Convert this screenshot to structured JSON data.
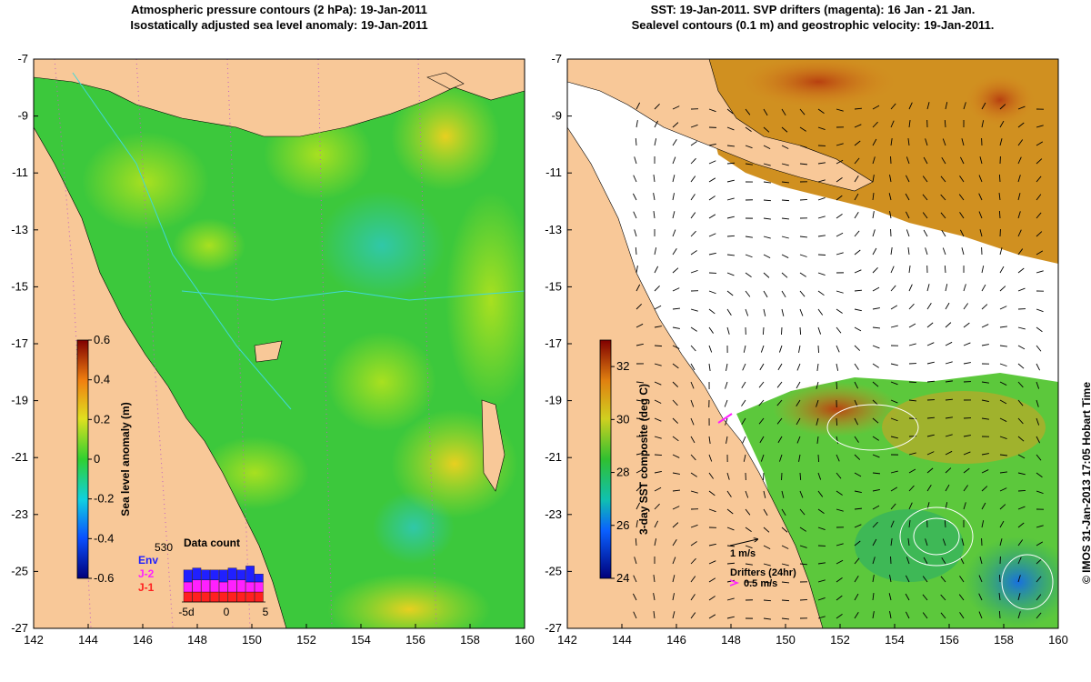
{
  "titles": {
    "left_line1": "Atmospheric pressure contours (2 hPa): 19-Jan-2011",
    "left_line2": "Isostatically adjusted sea level anomaly: 19-Jan-2011",
    "right_line1": "SST: 19-Jan-2011. SVP drifters (magenta): 16 Jan - 21 Jan.",
    "right_line2": "Sealevel contours (0.1 m) and geostrophic velocity: 19-Jan-2011."
  },
  "copyright": "© IMOS 31-Jan-2013 17:05 Hobart Time",
  "colors": {
    "land": "#f8c898",
    "ocean_mid": "#3cc83c",
    "warm": "#d8a020",
    "hot": "#b03010",
    "cold": "#1058c8"
  },
  "chart_data": [
    {
      "type": "heatmap",
      "title": "Atmospheric pressure contours (2 hPa): 19-Jan-2011 / Isostatically adjusted sea level anomaly: 19-Jan-2011",
      "x_ticks": [
        "142",
        "144",
        "146",
        "148",
        "150",
        "152",
        "154",
        "156",
        "158",
        "160"
      ],
      "y_ticks": [
        "-7",
        "-9",
        "-11",
        "-13",
        "-15",
        "-17",
        "-19",
        "-21",
        "-23",
        "-25",
        "-27"
      ],
      "xlim": [
        142,
        160
      ],
      "ylim": [
        -27,
        -7
      ],
      "colorbar": {
        "label": "Sea level anomaly (m)",
        "ticks": [
          "0.6",
          "0.4",
          "0.2",
          "0",
          "-0.2",
          "-0.4",
          "-0.6"
        ],
        "range": [
          -0.6,
          0.6
        ]
      },
      "inset": {
        "title": "Data count",
        "count": "530",
        "series": [
          {
            "name": "Env",
            "color": "#2020ff",
            "values": [
              6,
              6,
              5,
              5,
              6,
              6,
              5,
              8,
              4
            ]
          },
          {
            "name": "J-2",
            "color": "#ff20ff",
            "values": [
              5,
              6,
              6,
              6,
              5,
              6,
              6,
              5,
              5
            ]
          },
          {
            "name": "J-1",
            "color": "#ff2020",
            "values": [
              5,
              5,
              5,
              5,
              5,
              5,
              5,
              5,
              5
            ]
          }
        ],
        "x_ticks": [
          "-5d",
          "0",
          "5"
        ]
      },
      "anomaly_features": [
        {
          "lon": 155.5,
          "lat": -13.5,
          "value": -0.2
        },
        {
          "lon": 157,
          "lat": -10,
          "value": 0.15
        },
        {
          "lon": 157,
          "lat": -21,
          "value": 0.15
        },
        {
          "lon": 156,
          "lat": -26.5,
          "value": 0.2
        },
        {
          "lon": 155.5,
          "lat": -23.5,
          "value": -0.15
        }
      ]
    },
    {
      "type": "heatmap",
      "title": "SST: 19-Jan-2011. SVP drifters (magenta): 16 Jan - 21 Jan. / Sealevel contours (0.1 m) and geostrophic velocity: 19-Jan-2011.",
      "x_ticks": [
        "142",
        "144",
        "146",
        "148",
        "150",
        "152",
        "154",
        "156",
        "158",
        "160"
      ],
      "y_ticks": [
        "-7",
        "-9",
        "-11",
        "-13",
        "-15",
        "-17",
        "-19",
        "-21",
        "-23",
        "-25",
        "-27"
      ],
      "xlim": [
        142,
        160
      ],
      "ylim": [
        -27,
        -7
      ],
      "colorbar": {
        "label": "3-day SST composite (deg C)",
        "ticks": [
          "32",
          "30",
          "28",
          "26",
          "24"
        ],
        "range": [
          24,
          33
        ]
      },
      "legend": {
        "velocity": "1 m/s",
        "drifters_title": "Drifters (24hr)",
        "drifters_scale": "0.5 m/s"
      }
    }
  ]
}
